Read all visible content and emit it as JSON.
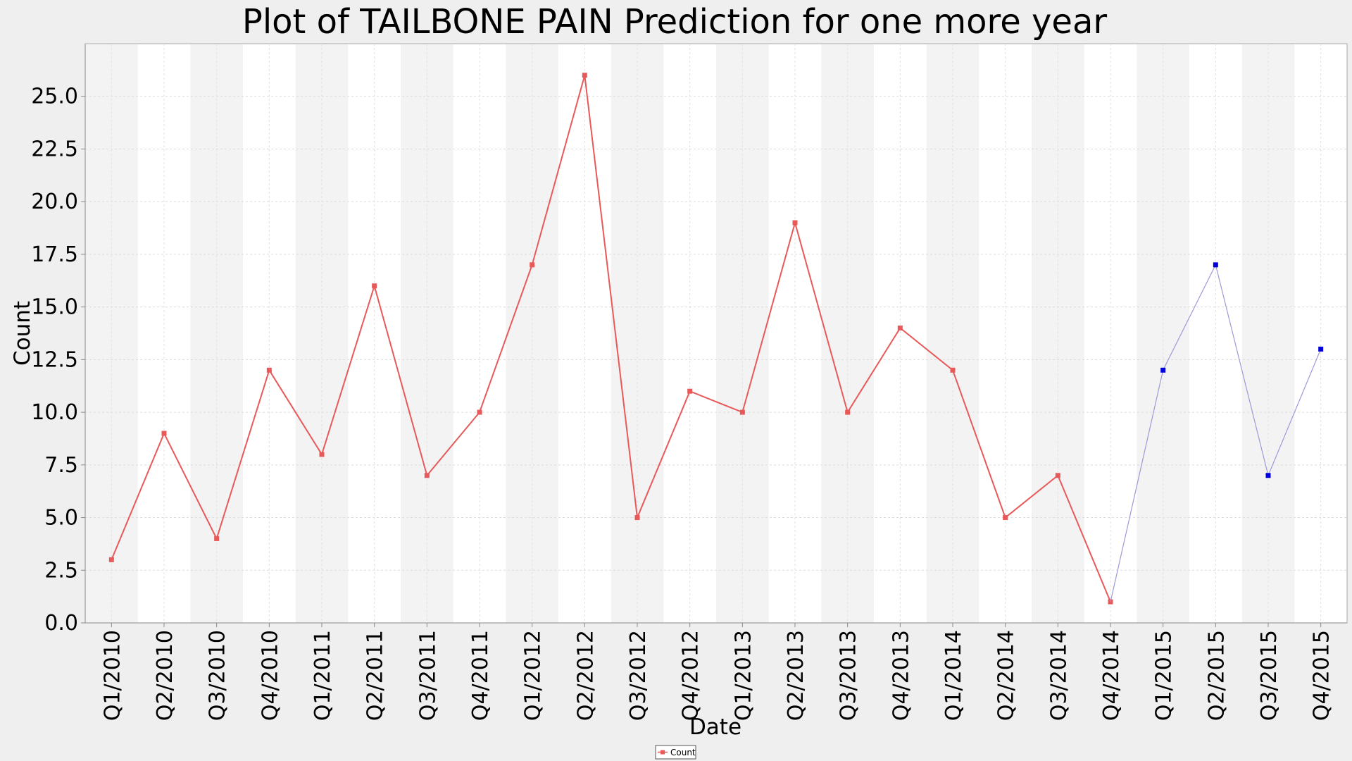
{
  "chart_data": {
    "type": "line",
    "title": "Plot of TAILBONE PAIN Prediction for one more year",
    "xlabel": "Date",
    "ylabel": "Count",
    "categories": [
      "Q1/2010",
      "Q2/2010",
      "Q3/2010",
      "Q4/2010",
      "Q1/2011",
      "Q2/2011",
      "Q3/2011",
      "Q4/2011",
      "Q1/2012",
      "Q2/2012",
      "Q3/2012",
      "Q4/2012",
      "Q1/2013",
      "Q2/2013",
      "Q3/2013",
      "Q4/2013",
      "Q1/2014",
      "Q2/2014",
      "Q3/2014",
      "Q4/2014",
      "Q1/2015",
      "Q2/2015",
      "Q3/2015",
      "Q4/2015"
    ],
    "ylim": [
      0,
      27.5
    ],
    "yticks": [
      "0.0",
      "2.5",
      "5.0",
      "7.5",
      "10.0",
      "12.5",
      "15.0",
      "17.5",
      "20.0",
      "22.5",
      "25.0"
    ],
    "grid": true,
    "legend_position": "bottom-center",
    "series": [
      {
        "name": "Count",
        "color": "#e8595a",
        "values": [
          3,
          9,
          4,
          12,
          8,
          16,
          7,
          10,
          17,
          26,
          5,
          11,
          10,
          19,
          10,
          14,
          12,
          5,
          7,
          1,
          null,
          null,
          null,
          null
        ]
      },
      {
        "color": "#0000dd",
        "line_color": "#9a9ad8",
        "values": [
          null,
          null,
          null,
          null,
          null,
          null,
          null,
          null,
          null,
          null,
          null,
          null,
          null,
          null,
          null,
          null,
          null,
          null,
          null,
          1,
          12,
          17,
          7,
          13
        ]
      }
    ]
  }
}
